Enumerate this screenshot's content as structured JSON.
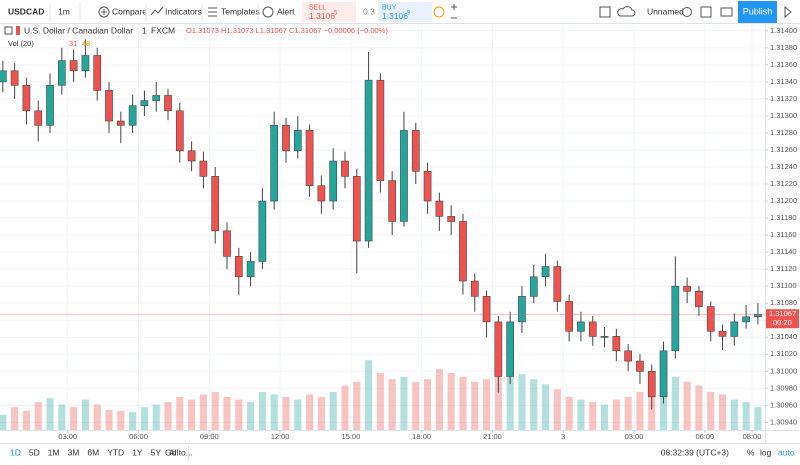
{
  "toolbar": {
    "symbol": "USDCAD",
    "interval": "1m",
    "compare": "Compare",
    "indicators": "Indicators",
    "templates": "Templates",
    "alert": "Alert",
    "sell": {
      "label": "SELL",
      "price": "1.3106",
      "pip": "5"
    },
    "spread": "0.3",
    "buy": {
      "label": "BUY",
      "price": "1.3106",
      "pip": "9"
    },
    "layout": "Unnamed",
    "publish": "Publish"
  },
  "chart_data": {
    "type": "candlestick",
    "title": "U.S. Dollar / Canadian Dollar",
    "interval": "1",
    "source": "FXCM",
    "ohlc_readout": "O1.31073  H1.31073  L1.31067  C1.31067  −0.00006 (−0.00%)",
    "volume_label": "Vol (20)",
    "volume_readout": [
      "31",
      "48"
    ],
    "up_color": "#26a69a",
    "down_color": "#ef5350",
    "grid": true,
    "x": [
      0.25,
      0.75,
      1.25,
      1.75,
      2.25,
      2.75,
      3.25,
      3.75,
      4.25,
      4.75,
      5.25,
      5.75,
      6.25,
      6.75,
      7.25,
      7.75,
      8.25,
      8.75,
      9.25,
      9.75,
      10.25,
      10.75,
      11.25,
      11.75,
      12.25,
      12.75,
      13.25,
      13.75,
      14.25,
      14.75,
      15.25,
      15.75,
      16.25,
      16.75,
      17.25,
      17.75,
      18.25,
      18.75,
      19.25,
      19.75,
      20.25,
      20.75,
      21.25,
      21.75,
      22.25,
      22.75,
      23.25,
      23.75,
      24.25,
      24.75,
      25.25,
      25.75,
      26.25,
      26.75,
      27.25,
      27.75,
      28.25,
      28.75,
      29.25,
      29.75,
      30.25,
      30.75,
      31.25,
      31.75,
      32.25
    ],
    "open": [
      1.3134,
      1.31353,
      1.31336,
      1.31306,
      1.31289,
      1.31336,
      1.31365,
      1.31353,
      1.31371,
      1.3133,
      1.31294,
      1.31289,
      1.31312,
      1.31318,
      1.31324,
      1.31306,
      1.31259,
      1.31247,
      1.31229,
      1.31165,
      1.31135,
      1.31111,
      1.31129,
      1.312,
      1.31289,
      1.31259,
      1.31283,
      1.31218,
      1.312,
      1.31247,
      1.31229,
      1.31153,
      1.31342,
      1.31224,
      1.31176,
      1.31283,
      1.31235,
      1.312,
      1.31182,
      1.31176,
      1.31106,
      1.31088,
      1.31058,
      1.30994,
      1.31058,
      1.31088,
      1.31111,
      1.31123,
      1.31082,
      1.31047,
      1.31058,
      1.31041,
      1.31041,
      1.31024,
      1.31012,
      1.31,
      1.3097,
      1.31024,
      1.311,
      1.31094,
      1.31076,
      1.31047,
      1.31041,
      1.31058,
      1.31064
    ],
    "high": [
      1.31365,
      1.31362,
      1.31345,
      1.31318,
      1.3135,
      1.3138,
      1.31378,
      1.3139,
      1.3138,
      1.3134,
      1.31305,
      1.31325,
      1.3133,
      1.3134,
      1.31332,
      1.31315,
      1.3127,
      1.31258,
      1.3124,
      1.31175,
      1.31145,
      1.3114,
      1.31215,
      1.31305,
      1.31298,
      1.313,
      1.3129,
      1.3123,
      1.31262,
      1.31258,
      1.31238,
      1.31375,
      1.3135,
      1.31235,
      1.31305,
      1.31292,
      1.31245,
      1.3121,
      1.31195,
      1.31185,
      1.31115,
      1.31095,
      1.31065,
      1.3107,
      1.311,
      1.31125,
      1.31138,
      1.3113,
      1.3109,
      1.3107,
      1.31065,
      1.31052,
      1.3105,
      1.31032,
      1.3102,
      1.31008,
      1.31035,
      1.31135,
      1.3111,
      1.311,
      1.31082,
      1.31055,
      1.31068,
      1.31078,
      1.3108
    ],
    "low": [
      1.31328,
      1.3132,
      1.3129,
      1.3127,
      1.3128,
      1.31325,
      1.3134,
      1.31345,
      1.31318,
      1.3128,
      1.31268,
      1.3128,
      1.313,
      1.31305,
      1.31295,
      1.31245,
      1.31235,
      1.31215,
      1.3115,
      1.3112,
      1.3109,
      1.311,
      1.3112,
      1.3119,
      1.31245,
      1.3125,
      1.31205,
      1.31185,
      1.3119,
      1.31215,
      1.31115,
      1.31145,
      1.3121,
      1.3116,
      1.3117,
      1.3122,
      1.31185,
      1.31165,
      1.3116,
      1.3109,
      1.3107,
      1.3104,
      1.30975,
      1.30985,
      1.31045,
      1.3108,
      1.311,
      1.3107,
      1.31035,
      1.31035,
      1.3103,
      1.31028,
      1.31012,
      1.31,
      1.30985,
      1.30955,
      1.30962,
      1.31015,
      1.3108,
      1.31065,
      1.31035,
      1.31025,
      1.3103,
      1.3105,
      1.31055
    ],
    "close": [
      1.31353,
      1.31336,
      1.31306,
      1.31289,
      1.31336,
      1.31365,
      1.31353,
      1.31371,
      1.3133,
      1.31294,
      1.31289,
      1.31312,
      1.31318,
      1.31324,
      1.31306,
      1.31259,
      1.31247,
      1.31229,
      1.31165,
      1.31135,
      1.31111,
      1.31129,
      1.312,
      1.31289,
      1.31259,
      1.31283,
      1.31218,
      1.312,
      1.31247,
      1.31229,
      1.31153,
      1.31342,
      1.31224,
      1.31176,
      1.31283,
      1.31235,
      1.312,
      1.31182,
      1.31176,
      1.31106,
      1.31088,
      1.31058,
      1.30994,
      1.31058,
      1.31088,
      1.31111,
      1.31123,
      1.31082,
      1.31047,
      1.31058,
      1.31041,
      1.31041,
      1.31024,
      1.31012,
      1.31,
      1.3097,
      1.31024,
      1.311,
      1.31094,
      1.31076,
      1.31047,
      1.31041,
      1.31058,
      1.31064,
      1.31067
    ],
    "volume": [
      12,
      18,
      15,
      22,
      25,
      20,
      18,
      24,
      20,
      16,
      15,
      14,
      18,
      20,
      22,
      26,
      24,
      28,
      30,
      26,
      24,
      22,
      30,
      28,
      26,
      24,
      28,
      26,
      30,
      35,
      38,
      55,
      45,
      40,
      42,
      38,
      40,
      48,
      45,
      42,
      38,
      40,
      50,
      48,
      44,
      40,
      36,
      32,
      26,
      24,
      22,
      20,
      24,
      26,
      30,
      34,
      36,
      42,
      38,
      35,
      30,
      28,
      24,
      22,
      18
    ],
    "vlim": [
      0,
      320
    ],
    "xlim": [
      0.13,
      32.55
    ],
    "xticks": [
      {
        "value": 3,
        "label": "03:00"
      },
      {
        "value": 6,
        "label": "06:00"
      },
      {
        "value": 9,
        "label": "09:00"
      },
      {
        "value": 12,
        "label": "12:00"
      },
      {
        "value": 15,
        "label": "15:00"
      },
      {
        "value": 18,
        "label": "18:00"
      },
      {
        "value": 21,
        "label": "21:00"
      },
      {
        "value": 24,
        "label": "3"
      },
      {
        "value": 27,
        "label": "03:00"
      },
      {
        "value": 30,
        "label": "06:00"
      },
      {
        "value": 32,
        "label": "08:00"
      }
    ],
    "ylim": [
      1.30931,
      1.31408
    ],
    "yticks": [
      {
        "value": 1.3094,
        "label": "1.30940"
      },
      {
        "value": 1.3096,
        "label": "1.30960"
      },
      {
        "value": 1.3098,
        "label": "1.30980"
      },
      {
        "value": 1.31,
        "label": "1.31000"
      },
      {
        "value": 1.3102,
        "label": "1.31020"
      },
      {
        "value": 1.3104,
        "label": "1.31040"
      },
      {
        "value": 1.3106,
        "label": "1.31060"
      },
      {
        "value": 1.3108,
        "label": "1.31080"
      },
      {
        "value": 1.311,
        "label": "1.31100"
      },
      {
        "value": 1.3112,
        "label": "1.31120"
      },
      {
        "value": 1.3114,
        "label": "1.31140"
      },
      {
        "value": 1.3116,
        "label": "1.31160"
      },
      {
        "value": 1.3118,
        "label": "1.31180"
      },
      {
        "value": 1.312,
        "label": "1.31200"
      },
      {
        "value": 1.3122,
        "label": "1.31220"
      },
      {
        "value": 1.3124,
        "label": "1.31240"
      },
      {
        "value": 1.3126,
        "label": "1.31260"
      },
      {
        "value": 1.3128,
        "label": "1.31280"
      },
      {
        "value": 1.313,
        "label": "1.31300"
      },
      {
        "value": 1.3132,
        "label": "1.31320"
      },
      {
        "value": 1.3134,
        "label": "1.31340"
      },
      {
        "value": 1.3136,
        "label": "1.31360"
      },
      {
        "value": 1.3138,
        "label": "1.31380"
      },
      {
        "value": 1.314,
        "label": "1.31400"
      }
    ],
    "last_price": 1.31067,
    "countdown": "00:20"
  },
  "bottom_bar": {
    "ranges": [
      "1D",
      "5D",
      "1M",
      "3M",
      "6M",
      "YTD",
      "1Y",
      "5Y",
      "All"
    ],
    "goto": "Go to...",
    "clock": "08:32:39 (UTC+3)",
    "options": [
      "%",
      "log",
      "auto"
    ]
  }
}
